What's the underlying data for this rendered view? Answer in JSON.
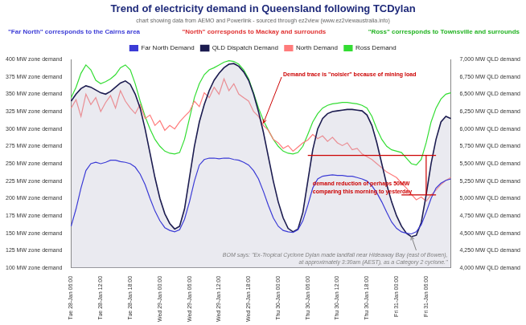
{
  "chart_data": {
    "type": "line",
    "title": "Trend of electricity demand in Queensland following TCDylan",
    "subtitle": "chart showing data from AEMO and Powerlink - sourced through ez2view (www.ez2viewaustralia.info)",
    "categories": [
      "Tue 28-Jan 06:00",
      null,
      null,
      null,
      null,
      null,
      "Tue 28-Jan 12:00",
      null,
      null,
      null,
      null,
      null,
      "Tue 28-Jan 18:00",
      null,
      null,
      null,
      null,
      null,
      "Wed 29-Jan 00:00",
      null,
      null,
      null,
      null,
      null,
      "Wed 29-Jan 06:00",
      null,
      null,
      null,
      null,
      null,
      "Wed 29-Jan 12:00",
      null,
      null,
      null,
      null,
      null,
      "Wed 29-Jan 18:00",
      null,
      null,
      null,
      null,
      null,
      "Thu 30-Jan 00:00",
      null,
      null,
      null,
      null,
      null,
      "Thu 30-Jan 06:00",
      null,
      null,
      null,
      null,
      null,
      "Thu 30-Jan 12:00",
      null,
      null,
      null,
      null,
      null,
      "Thu 30-Jan 18:00",
      null,
      null,
      null,
      null,
      null,
      "Fri 31-Jan 00:00",
      null,
      null,
      null,
      null,
      null,
      "Fri 31-Jan 06:00",
      null,
      null,
      null,
      null,
      null
    ],
    "series": [
      {
        "name": "Far North Demand",
        "color": "#3b3bd6",
        "values": [
          160,
          185,
          215,
          240,
          250,
          252,
          250,
          252,
          255,
          255,
          253,
          252,
          250,
          245,
          235,
          220,
          200,
          182,
          168,
          158,
          154,
          152,
          155,
          170,
          195,
          225,
          248,
          256,
          258,
          258,
          257,
          258,
          258,
          256,
          255,
          252,
          248,
          240,
          228,
          210,
          190,
          172,
          160,
          154,
          152,
          151,
          155,
          168,
          190,
          215,
          228,
          232,
          233,
          234,
          233,
          233,
          232,
          232,
          230,
          228,
          225,
          218,
          208,
          195,
          180,
          166,
          157,
          152,
          150,
          149,
          152,
          162,
          180,
          200,
          215,
          222,
          226,
          228
        ]
      },
      {
        "name": "QLD Dispatch Demand",
        "color": "#1c1c50",
        "axis": "y2",
        "values": [
          6400,
          6500,
          6580,
          6620,
          6600,
          6560,
          6520,
          6500,
          6540,
          6600,
          6660,
          6690,
          6640,
          6500,
          6300,
          6000,
          5650,
          5300,
          5000,
          4780,
          4640,
          4560,
          4600,
          4850,
          5300,
          5750,
          6100,
          6350,
          6550,
          6700,
          6800,
          6880,
          6930,
          6940,
          6900,
          6820,
          6700,
          6500,
          6250,
          5950,
          5600,
          5250,
          4950,
          4720,
          4570,
          4520,
          4560,
          4800,
          5250,
          5700,
          6000,
          6150,
          6220,
          6250,
          6260,
          6270,
          6280,
          6280,
          6270,
          6260,
          6200,
          6050,
          5800,
          5500,
          5200,
          4950,
          4750,
          4600,
          4500,
          4450,
          4470,
          4650,
          5050,
          5500,
          5850,
          6100,
          6180,
          6150
        ]
      },
      {
        "name": "North Demand",
        "color": "#ff7b7b",
        "values": [
          330,
          342,
          318,
          350,
          335,
          345,
          325,
          338,
          348,
          330,
          355,
          340,
          330,
          322,
          335,
          315,
          320,
          305,
          312,
          298,
          305,
          300,
          310,
          318,
          325,
          340,
          332,
          352,
          345,
          360,
          350,
          372,
          355,
          365,
          350,
          345,
          340,
          325,
          318,
          305,
          298,
          285,
          280,
          272,
          276,
          268,
          274,
          280,
          284,
          292,
          286,
          290,
          282,
          288,
          280,
          276,
          280,
          270,
          272,
          264,
          260,
          256,
          250,
          244,
          238,
          234,
          230,
          222,
          215,
          206,
          198,
          202,
          196,
          205,
          212,
          220,
          226,
          230
        ]
      },
      {
        "name": "Ross Demand",
        "color": "#33dd33",
        "values": [
          345,
          360,
          380,
          392,
          385,
          370,
          365,
          368,
          372,
          378,
          388,
          392,
          385,
          365,
          340,
          318,
          300,
          285,
          275,
          268,
          265,
          264,
          266,
          285,
          315,
          345,
          365,
          378,
          385,
          388,
          392,
          396,
          398,
          397,
          393,
          385,
          372,
          352,
          330,
          312,
          298,
          285,
          275,
          268,
          265,
          264,
          266,
          275,
          292,
          310,
          322,
          330,
          334,
          336,
          337,
          338,
          338,
          337,
          336,
          334,
          330,
          318,
          300,
          285,
          275,
          270,
          268,
          266,
          258,
          250,
          248,
          256,
          280,
          310,
          330,
          343,
          350,
          352
        ]
      }
    ],
    "ylim": [
      100,
      400
    ],
    "yticks": [
      {
        "value": 100,
        "label": "100 MW zone demand"
      },
      {
        "value": 125,
        "label": "125 MW zone demand"
      },
      {
        "value": 150,
        "label": "150 MW zone demand"
      },
      {
        "value": 175,
        "label": "175 MW zone demand"
      },
      {
        "value": 200,
        "label": "200 MW zone demand"
      },
      {
        "value": 225,
        "label": "225 MW zone demand"
      },
      {
        "value": 250,
        "label": "250 MW zone demand"
      },
      {
        "value": 275,
        "label": "275 MW zone demand"
      },
      {
        "value": 300,
        "label": "300 MW zone demand"
      },
      {
        "value": 325,
        "label": "325 MW zone demand"
      },
      {
        "value": 350,
        "label": "350 MW zone demand"
      },
      {
        "value": 375,
        "label": "375 MW zone demand"
      },
      {
        "value": 400,
        "label": "400 MW zone demand"
      }
    ],
    "y2lim": [
      4000,
      7000
    ],
    "y2ticks": [
      {
        "value": 4000,
        "label": "4,000 MW QLD demand"
      },
      {
        "value": 4250,
        "label": "4,250 MW QLD demand"
      },
      {
        "value": 4500,
        "label": "4,500 MW QLD demand"
      },
      {
        "value": 4750,
        "label": "4,750 MW QLD demand"
      },
      {
        "value": 5000,
        "label": "5,000 MW QLD demand"
      },
      {
        "value": 5250,
        "label": "5,250 MW QLD demand"
      },
      {
        "value": 5500,
        "label": "5,500 MW QLD demand"
      },
      {
        "value": 5750,
        "label": "5,750 MW QLD demand"
      },
      {
        "value": 6000,
        "label": "6,000 MW QLD demand"
      },
      {
        "value": 6250,
        "label": "6,250 MW QLD demand"
      },
      {
        "value": 6500,
        "label": "6,500 MW QLD demand"
      },
      {
        "value": 6750,
        "label": "6,750 MW QLD demand"
      },
      {
        "value": 7000,
        "label": "7,000 MW QLD demand"
      }
    ],
    "grid": false,
    "legend": "top",
    "annotations": {
      "zones": [
        {
          "text": "\"Far North\" corresponds to the Cairns area",
          "color": "#3b3bd6"
        },
        {
          "text": "\"North\" corresponds to Mackay and surrounds",
          "color": "#e03030"
        },
        {
          "text": "\"Ross\" corresponds to Townsville and surrounds",
          "color": "#22b322"
        }
      ],
      "noise": {
        "text": "Demand trace is \"noisier\" because of mining load",
        "color": "#cc0000"
      },
      "reduction": {
        "lines": [
          "demand reduction of perhaps 50MW",
          "comparing this morning to yesterday"
        ],
        "color": "#cc0000",
        "from": 262,
        "to": 205
      },
      "bom": {
        "lines": [
          "BOM says: \"Ex-Tropical Cyclone Dylan made landfall near Hideaway Bay (east of Bowen),",
          "at approximately 3:30am (AEST), as a Category 2 cyclone.\""
        ],
        "color": "#808080"
      }
    }
  }
}
